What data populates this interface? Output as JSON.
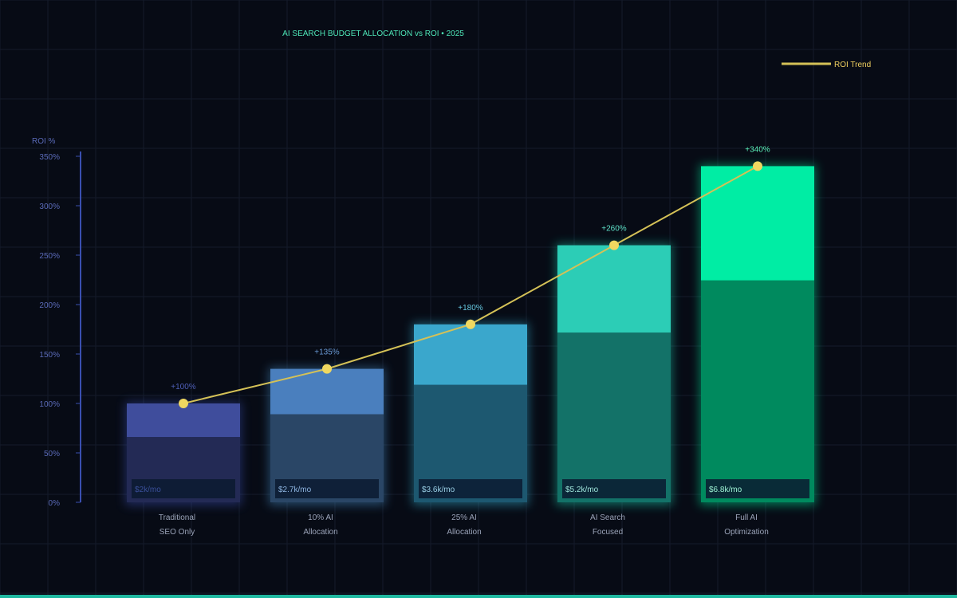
{
  "chart_data": {
    "type": "bar",
    "title": "AI SEARCH BUDGET ALLOCATION vs ROI • 2025",
    "ylabel": "ROI %",
    "xlabel": "",
    "ylim": [
      0,
      350
    ],
    "yticks": [
      0,
      50,
      100,
      150,
      200,
      250,
      300,
      350
    ],
    "ytick_labels": [
      "0%",
      "50%",
      "100%",
      "150%",
      "200%",
      "250%",
      "300%",
      "350%"
    ],
    "grid": true,
    "legend": {
      "position": "top-right",
      "entries": [
        "ROI Trend"
      ]
    },
    "categories": [
      [
        "Traditional",
        "SEO Only"
      ],
      [
        "10% AI",
        "Allocation"
      ],
      [
        "25% AI",
        "Allocation"
      ],
      [
        "AI Search",
        "Focused"
      ],
      [
        "Full AI",
        "Optimization"
      ]
    ],
    "values": [
      100,
      135,
      180,
      260,
      340
    ],
    "value_labels": [
      "+100%",
      "+135%",
      "+180%",
      "+260%",
      "+340%"
    ],
    "budgets": [
      "$2k/mo",
      "$2.7k/mo",
      "$3.6k/mo",
      "$5.2k/mo",
      "$6.8k/mo"
    ],
    "line_series": {
      "name": "ROI Trend",
      "values": [
        100,
        135,
        180,
        260,
        340
      ]
    },
    "colors": {
      "bar_top": [
        "#3f4d9c",
        "#4a7fbe",
        "#3aa7cc",
        "#2ccdb6",
        "#00eda4"
      ],
      "bar_bottom": [
        "#232a55",
        "#2a4666",
        "#1d5870",
        "#137268",
        "#008a5e"
      ],
      "glow": [
        "#3a4fb0",
        "#4a90c8",
        "#36b0d0",
        "#1fd0b0",
        "#00f0a0"
      ],
      "budget_text": [
        "#3a4f9a",
        "#8db4e0",
        "#9bd0e6",
        "#9fe6dc",
        "#9ff5d6"
      ],
      "label_top": [
        "#4f5fb8",
        "#6a9ad6",
        "#66c8e0",
        "#5ee0c8",
        "#5af0b8"
      ],
      "line": "#d4c157",
      "point": "#f0d860",
      "axis": "#3a4fb0",
      "tick_text": "#5a6ab8",
      "title": "#4ee6b8",
      "legend_text": "#f0d060",
      "grid": "#141b2a",
      "category_text": "#9aa3b8"
    }
  }
}
